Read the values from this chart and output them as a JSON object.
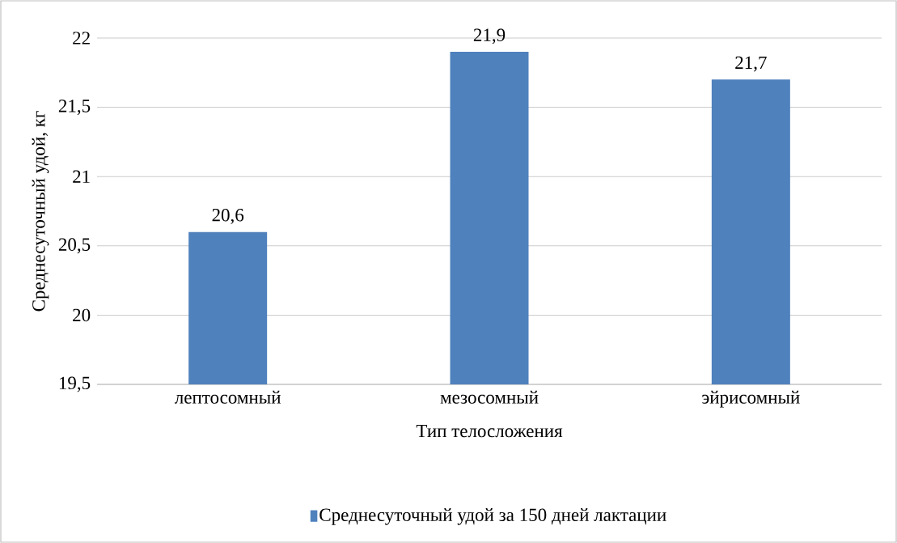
{
  "chart_data": {
    "type": "bar",
    "xlabel": "Тип телосложения",
    "ylabel": "Среднесуточный удой, кг",
    "categories": [
      "лептосомный",
      "мезосомный",
      "эйрисомный"
    ],
    "series": [
      {
        "name": "Среднесуточный удой за 150 дней лактации",
        "color": "#4f81bd",
        "values": [
          20.6,
          21.9,
          21.7
        ],
        "value_labels": [
          "20,6",
          "21,9",
          "21,7"
        ]
      }
    ],
    "ylim": [
      19.5,
      22
    ],
    "yticks": [
      {
        "value": 19.5,
        "label": "19,5"
      },
      20,
      {
        "value": 20.5,
        "label": "20,5"
      },
      21,
      {
        "value": 21.5,
        "label": "21,5"
      },
      22
    ],
    "grid": "y",
    "legend": "bottom"
  }
}
